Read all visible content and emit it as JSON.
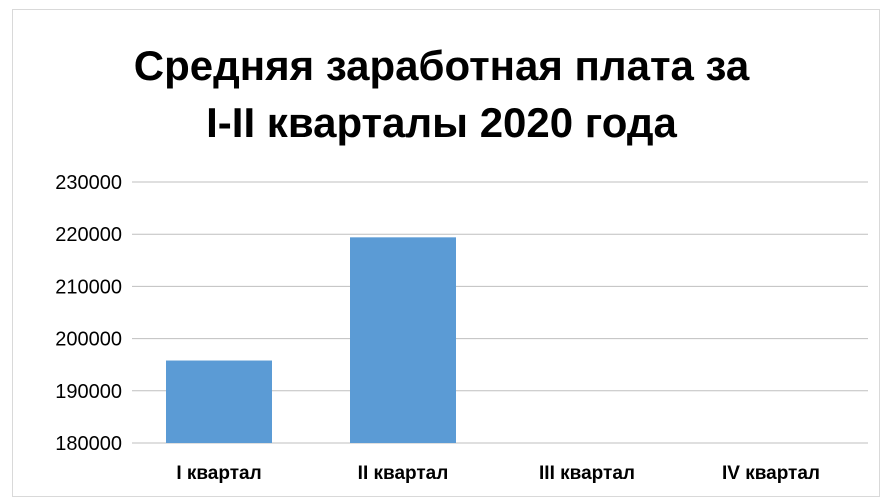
{
  "chart_data": {
    "type": "bar",
    "title_lines": [
      "Средняя заработная плата за",
      "I-II кварталы 2020 года"
    ],
    "categories": [
      "I квартал",
      "II квартал",
      "III квартал",
      "IV квартал"
    ],
    "values": [
      195800,
      219400,
      null,
      null
    ],
    "ylim": [
      180000,
      230000
    ],
    "yticks": [
      180000,
      190000,
      200000,
      210000,
      220000,
      230000
    ],
    "grid": true,
    "legend": "none",
    "bar_color": "#5b9bd5",
    "grid_color": "#bfbfbf"
  }
}
